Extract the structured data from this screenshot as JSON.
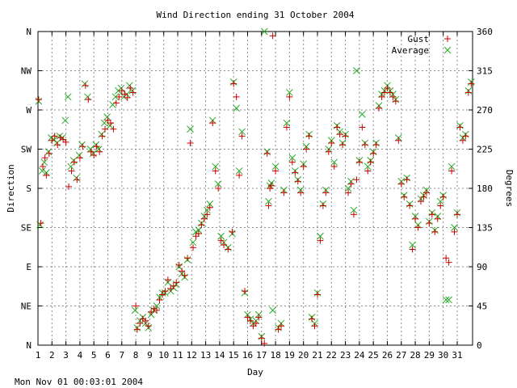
{
  "chart_data": {
    "type": "scatter",
    "title": "Wind Direction ending 31 October 2004",
    "xlabel": "Day",
    "ylabel_left": "Direction",
    "ylabel_right": "Degrees",
    "footer": "Mon Nov 01 00:03:01 2004",
    "xlim": [
      1,
      32.1
    ],
    "ylim": [
      0,
      360
    ],
    "x_ticks": [
      "1",
      "2",
      "3",
      "4",
      "5",
      "6",
      "7",
      "8",
      "9",
      "10",
      "11",
      "12",
      "13",
      "14",
      "15",
      "16",
      "17",
      "18",
      "19",
      "20",
      "21",
      "22",
      "23",
      "24",
      "25",
      "26",
      "27",
      "28",
      "29",
      "30",
      "31"
    ],
    "y_ticks_left": [
      "N",
      "NE",
      "E",
      "SE",
      "S",
      "SW",
      "W",
      "NW",
      "N"
    ],
    "y_ticks_right": [
      "0",
      "45",
      "90",
      "135",
      "180",
      "225",
      "270",
      "315",
      "360"
    ],
    "grid": true,
    "legend_position": "top-right",
    "colors": {
      "gust": "#cc0000",
      "average": "#22aa22"
    },
    "series": [
      {
        "name": "Gust",
        "marker": "+",
        "points": [
          [
            1.05,
            282
          ],
          [
            1.2,
            140
          ],
          [
            1.35,
            205
          ],
          [
            1.5,
            215
          ],
          [
            1.6,
            195
          ],
          [
            1.8,
            220
          ],
          [
            2.0,
            235
          ],
          [
            2.2,
            240
          ],
          [
            2.4,
            230
          ],
          [
            2.6,
            238
          ],
          [
            2.8,
            236
          ],
          [
            3.0,
            233
          ],
          [
            3.2,
            182
          ],
          [
            3.4,
            200
          ],
          [
            3.6,
            210
          ],
          [
            3.8,
            190
          ],
          [
            4.0,
            215
          ],
          [
            4.2,
            228
          ],
          [
            4.4,
            298
          ],
          [
            4.6,
            282
          ],
          [
            4.8,
            222
          ],
          [
            5.0,
            218
          ],
          [
            5.2,
            228
          ],
          [
            5.4,
            222
          ],
          [
            5.6,
            240
          ],
          [
            5.8,
            248
          ],
          [
            6.0,
            258
          ],
          [
            6.2,
            255
          ],
          [
            6.4,
            248
          ],
          [
            6.6,
            278
          ],
          [
            6.8,
            285
          ],
          [
            7.0,
            292
          ],
          [
            7.2,
            288
          ],
          [
            7.4,
            284
          ],
          [
            7.6,
            295
          ],
          [
            7.8,
            290
          ],
          [
            8.0,
            45
          ],
          [
            8.1,
            18
          ],
          [
            8.3,
            25
          ],
          [
            8.5,
            30
          ],
          [
            8.7,
            28
          ],
          [
            8.9,
            22
          ],
          [
            9.1,
            38
          ],
          [
            9.3,
            42
          ],
          [
            9.5,
            40
          ],
          [
            9.7,
            52
          ],
          [
            9.9,
            58
          ],
          [
            10.1,
            62
          ],
          [
            10.3,
            75
          ],
          [
            10.5,
            65
          ],
          [
            10.7,
            68
          ],
          [
            10.9,
            72
          ],
          [
            11.1,
            92
          ],
          [
            11.3,
            85
          ],
          [
            11.5,
            80
          ],
          [
            11.7,
            100
          ],
          [
            11.9,
            232
          ],
          [
            12.1,
            112
          ],
          [
            12.3,
            125
          ],
          [
            12.5,
            128
          ],
          [
            12.7,
            138
          ],
          [
            12.9,
            145
          ],
          [
            13.1,
            150
          ],
          [
            13.3,
            158
          ],
          [
            13.5,
            255
          ],
          [
            13.7,
            200
          ],
          [
            13.9,
            180
          ],
          [
            14.1,
            120
          ],
          [
            14.3,
            115
          ],
          [
            14.6,
            110
          ],
          [
            14.9,
            130
          ],
          [
            15.0,
            300
          ],
          [
            15.2,
            285
          ],
          [
            15.4,
            195
          ],
          [
            15.6,
            240
          ],
          [
            15.8,
            62
          ],
          [
            16.0,
            32
          ],
          [
            16.2,
            28
          ],
          [
            16.4,
            22
          ],
          [
            16.6,
            25
          ],
          [
            16.8,
            32
          ],
          [
            17.0,
            8
          ],
          [
            17.2,
            2
          ],
          [
            17.4,
            220
          ],
          [
            17.5,
            160
          ],
          [
            17.6,
            180
          ],
          [
            17.7,
            183
          ],
          [
            17.8,
            355
          ],
          [
            18.0,
            200
          ],
          [
            18.2,
            18
          ],
          [
            18.4,
            22
          ],
          [
            18.6,
            175
          ],
          [
            18.8,
            250
          ],
          [
            19.0,
            285
          ],
          [
            19.2,
            210
          ],
          [
            19.4,
            198
          ],
          [
            19.6,
            188
          ],
          [
            19.8,
            175
          ],
          [
            20.0,
            205
          ],
          [
            20.2,
            225
          ],
          [
            20.4,
            240
          ],
          [
            20.6,
            30
          ],
          [
            20.8,
            22
          ],
          [
            21.0,
            58
          ],
          [
            21.2,
            120
          ],
          [
            21.4,
            160
          ],
          [
            21.6,
            175
          ],
          [
            21.8,
            222
          ],
          [
            22.0,
            232
          ],
          [
            22.2,
            205
          ],
          [
            22.4,
            250
          ],
          [
            22.6,
            242
          ],
          [
            22.8,
            230
          ],
          [
            23.0,
            240
          ],
          [
            23.2,
            175
          ],
          [
            23.4,
            185
          ],
          [
            23.6,
            150
          ],
          [
            23.8,
            190
          ],
          [
            24.0,
            210
          ],
          [
            24.2,
            250
          ],
          [
            24.4,
            230
          ],
          [
            24.6,
            200
          ],
          [
            24.8,
            210
          ],
          [
            25.0,
            220
          ],
          [
            25.2,
            230
          ],
          [
            25.4,
            272
          ],
          [
            25.6,
            285
          ],
          [
            25.8,
            290
          ],
          [
            26.0,
            295
          ],
          [
            26.2,
            290
          ],
          [
            26.4,
            285
          ],
          [
            26.6,
            280
          ],
          [
            26.8,
            235
          ],
          [
            27.0,
            185
          ],
          [
            27.2,
            170
          ],
          [
            27.4,
            190
          ],
          [
            27.6,
            160
          ],
          [
            27.8,
            110
          ],
          [
            28.0,
            145
          ],
          [
            28.2,
            135
          ],
          [
            28.4,
            165
          ],
          [
            28.6,
            170
          ],
          [
            28.8,
            175
          ],
          [
            29.0,
            140
          ],
          [
            29.2,
            150
          ],
          [
            29.4,
            130
          ],
          [
            29.6,
            145
          ],
          [
            29.8,
            160
          ],
          [
            30.0,
            170
          ],
          [
            30.2,
            100
          ],
          [
            30.4,
            95
          ],
          [
            30.6,
            200
          ],
          [
            30.8,
            130
          ],
          [
            31.0,
            150
          ],
          [
            31.2,
            250
          ],
          [
            31.4,
            235
          ],
          [
            31.6,
            240
          ],
          [
            31.8,
            290
          ],
          [
            32.0,
            300
          ]
        ]
      },
      {
        "name": "Average",
        "marker": "x",
        "points": [
          [
            1.05,
            280
          ],
          [
            1.15,
            138
          ],
          [
            1.3,
            200
          ],
          [
            1.45,
            210
          ],
          [
            1.6,
            198
          ],
          [
            1.75,
            222
          ],
          [
            1.95,
            238
          ],
          [
            2.15,
            236
          ],
          [
            2.35,
            232
          ],
          [
            2.55,
            240
          ],
          [
            2.75,
            238
          ],
          [
            2.95,
            258
          ],
          [
            3.15,
            285
          ],
          [
            3.35,
            205
          ],
          [
            3.55,
            212
          ],
          [
            3.75,
            192
          ],
          [
            3.95,
            218
          ],
          [
            4.15,
            230
          ],
          [
            4.35,
            300
          ],
          [
            4.55,
            285
          ],
          [
            4.75,
            225
          ],
          [
            4.95,
            220
          ],
          [
            5.15,
            230
          ],
          [
            5.35,
            225
          ],
          [
            5.55,
            242
          ],
          [
            5.75,
            255
          ],
          [
            5.95,
            262
          ],
          [
            6.15,
            252
          ],
          [
            6.35,
            276
          ],
          [
            6.55,
            285
          ],
          [
            6.75,
            292
          ],
          [
            6.95,
            295
          ],
          [
            7.15,
            285
          ],
          [
            7.35,
            288
          ],
          [
            7.55,
            298
          ],
          [
            7.75,
            292
          ],
          [
            7.95,
            40
          ],
          [
            8.1,
            20
          ],
          [
            8.3,
            28
          ],
          [
            8.5,
            32
          ],
          [
            8.7,
            25
          ],
          [
            8.9,
            20
          ],
          [
            9.1,
            35
          ],
          [
            9.3,
            40
          ],
          [
            9.5,
            45
          ],
          [
            9.7,
            55
          ],
          [
            9.9,
            60
          ],
          [
            10.1,
            60
          ],
          [
            10.3,
            72
          ],
          [
            10.5,
            62
          ],
          [
            10.7,
            66
          ],
          [
            10.9,
            70
          ],
          [
            11.1,
            90
          ],
          [
            11.3,
            82
          ],
          [
            11.5,
            78
          ],
          [
            11.7,
            98
          ],
          [
            11.9,
            248
          ],
          [
            12.1,
            118
          ],
          [
            12.3,
            130
          ],
          [
            12.5,
            132
          ],
          [
            12.7,
            140
          ],
          [
            12.9,
            148
          ],
          [
            13.1,
            155
          ],
          [
            13.3,
            162
          ],
          [
            13.5,
            258
          ],
          [
            13.7,
            205
          ],
          [
            13.9,
            185
          ],
          [
            14.1,
            125
          ],
          [
            14.3,
            118
          ],
          [
            14.6,
            112
          ],
          [
            14.9,
            128
          ],
          [
            15.0,
            302
          ],
          [
            15.2,
            272
          ],
          [
            15.4,
            200
          ],
          [
            15.6,
            245
          ],
          [
            15.8,
            60
          ],
          [
            16.0,
            35
          ],
          [
            16.2,
            30
          ],
          [
            16.4,
            25
          ],
          [
            16.6,
            28
          ],
          [
            16.8,
            35
          ],
          [
            17.0,
            10
          ],
          [
            17.2,
            360
          ],
          [
            17.4,
            222
          ],
          [
            17.5,
            165
          ],
          [
            17.6,
            183
          ],
          [
            17.7,
            186
          ],
          [
            17.8,
            40
          ],
          [
            18.0,
            205
          ],
          [
            18.2,
            20
          ],
          [
            18.4,
            25
          ],
          [
            18.6,
            178
          ],
          [
            18.8,
            255
          ],
          [
            19.0,
            290
          ],
          [
            19.2,
            215
          ],
          [
            19.4,
            200
          ],
          [
            19.6,
            190
          ],
          [
            19.8,
            178
          ],
          [
            20.0,
            208
          ],
          [
            20.2,
            228
          ],
          [
            20.4,
            242
          ],
          [
            20.6,
            32
          ],
          [
            20.8,
            25
          ],
          [
            21.0,
            60
          ],
          [
            21.2,
            125
          ],
          [
            21.4,
            162
          ],
          [
            21.6,
            178
          ],
          [
            21.8,
            225
          ],
          [
            22.0,
            235
          ],
          [
            22.2,
            210
          ],
          [
            22.4,
            252
          ],
          [
            22.6,
            245
          ],
          [
            22.8,
            232
          ],
          [
            23.0,
            242
          ],
          [
            23.2,
            180
          ],
          [
            23.4,
            188
          ],
          [
            23.6,
            155
          ],
          [
            23.8,
            315
          ],
          [
            24.0,
            212
          ],
          [
            24.2,
            265
          ],
          [
            24.4,
            232
          ],
          [
            24.6,
            205
          ],
          [
            24.8,
            212
          ],
          [
            25.0,
            222
          ],
          [
            25.2,
            232
          ],
          [
            25.4,
            275
          ],
          [
            25.6,
            288
          ],
          [
            25.8,
            292
          ],
          [
            26.0,
            298
          ],
          [
            26.2,
            292
          ],
          [
            26.4,
            288
          ],
          [
            26.6,
            282
          ],
          [
            26.8,
            238
          ],
          [
            27.0,
            188
          ],
          [
            27.2,
            172
          ],
          [
            27.4,
            192
          ],
          [
            27.6,
            162
          ],
          [
            27.8,
            115
          ],
          [
            28.0,
            148
          ],
          [
            28.2,
            138
          ],
          [
            28.4,
            168
          ],
          [
            28.6,
            172
          ],
          [
            28.8,
            178
          ],
          [
            29.0,
            142
          ],
          [
            29.2,
            152
          ],
          [
            29.4,
            132
          ],
          [
            29.6,
            148
          ],
          [
            29.8,
            165
          ],
          [
            30.0,
            172
          ],
          [
            30.2,
            52
          ],
          [
            30.4,
            52
          ],
          [
            30.6,
            205
          ],
          [
            30.8,
            135
          ],
          [
            31.0,
            152
          ],
          [
            31.2,
            252
          ],
          [
            31.4,
            238
          ],
          [
            31.6,
            242
          ],
          [
            31.8,
            292
          ],
          [
            32.0,
            302
          ]
        ]
      }
    ]
  }
}
